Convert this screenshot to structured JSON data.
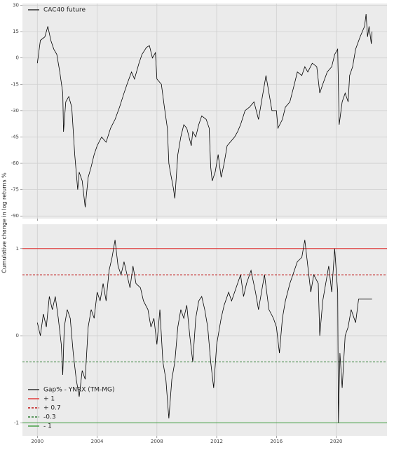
{
  "figure": {
    "ylabel": "Cumulative change in log returns %"
  },
  "chart_data": [
    {
      "type": "line",
      "legend": "upper left",
      "grid": true,
      "background": "#ebebeb",
      "xlim": [
        1999,
        2023.4
      ],
      "xticks": [
        2000,
        2004,
        2008,
        2012,
        2016,
        2020
      ],
      "ylim": [
        -91.5,
        31
      ],
      "yticks": [
        30,
        15,
        0,
        -15,
        -30,
        -45,
        -60,
        -75,
        -90
      ],
      "x": [
        2000.0,
        2000.2,
        2000.5,
        2000.7,
        2000.9,
        2001.1,
        2001.3,
        2001.5,
        2001.7,
        2001.75,
        2001.9,
        2002.1,
        2002.3,
        2002.5,
        2002.7,
        2002.8,
        2003.0,
        2003.2,
        2003.4,
        2003.6,
        2003.8,
        2004.0,
        2004.3,
        2004.6,
        2004.9,
        2005.2,
        2005.5,
        2005.8,
        2006.0,
        2006.3,
        2006.5,
        2006.8,
        2007.0,
        2007.3,
        2007.5,
        2007.7,
        2007.9,
        2008.0,
        2008.3,
        2008.5,
        2008.7,
        2008.8,
        2008.9,
        2009.1,
        2009.2,
        2009.4,
        2009.6,
        2009.8,
        2010.0,
        2010.3,
        2010.4,
        2010.6,
        2010.8,
        2011.0,
        2011.3,
        2011.5,
        2011.6,
        2011.7,
        2011.9,
        2012.1,
        2012.3,
        2012.5,
        2012.7,
        2012.9,
        2013.2,
        2013.4,
        2013.6,
        2013.9,
        2014.2,
        2014.5,
        2014.8,
        2015.0,
        2015.3,
        2015.5,
        2015.7,
        2016.0,
        2016.1,
        2016.4,
        2016.6,
        2016.9,
        2017.2,
        2017.4,
        2017.7,
        2017.9,
        2018.1,
        2018.4,
        2018.7,
        2018.9,
        2019.1,
        2019.4,
        2019.7,
        2019.9,
        2020.1,
        2020.2,
        2020.4,
        2020.6,
        2020.8,
        2020.9,
        2021.1,
        2021.3,
        2021.6,
        2021.9,
        2022.0,
        2022.1,
        2022.2,
        2022.35,
        2022.4
      ],
      "series": [
        {
          "name": "CAC40 future",
          "color": "#000000",
          "values": [
            -3,
            10,
            12,
            18,
            10,
            5,
            2,
            -8,
            -20,
            -42,
            -25,
            -22,
            -28,
            -55,
            -75,
            -65,
            -70,
            -85,
            -68,
            -62,
            -55,
            -50,
            -45,
            -48,
            -40,
            -35,
            -28,
            -20,
            -15,
            -8,
            -12,
            -3,
            2,
            6,
            7,
            0,
            3,
            -12,
            -15,
            -28,
            -40,
            -60,
            -65,
            -74,
            -80,
            -55,
            -45,
            -38,
            -40,
            -50,
            -42,
            -45,
            -38,
            -33,
            -35,
            -40,
            -62,
            -70,
            -65,
            -55,
            -68,
            -60,
            -50,
            -48,
            -45,
            -42,
            -38,
            -30,
            -28,
            -25,
            -35,
            -25,
            -10,
            -20,
            -30,
            -30,
            -40,
            -35,
            -28,
            -25,
            -15,
            -8,
            -10,
            -5,
            -8,
            -3,
            -5,
            -20,
            -15,
            -8,
            -5,
            2,
            5,
            -38,
            -25,
            -20,
            -25,
            -10,
            -5,
            5,
            12,
            18,
            25,
            12,
            18,
            8,
            15
          ]
        }
      ]
    },
    {
      "type": "line",
      "legend": "lower left",
      "grid": true,
      "background": "#ebebeb",
      "xlim": [
        1999,
        2023.4
      ],
      "xticks": [
        2000,
        2004,
        2008,
        2012,
        2016,
        2020
      ],
      "ylim": [
        -1.15,
        1.28
      ],
      "yticks": [
        1,
        0,
        -1
      ],
      "x": [
        2000.0,
        2000.2,
        2000.4,
        2000.6,
        2000.8,
        2001.0,
        2001.2,
        2001.4,
        2001.6,
        2001.7,
        2001.8,
        2002.0,
        2002.2,
        2002.4,
        2002.6,
        2002.8,
        2003.0,
        2003.2,
        2003.4,
        2003.6,
        2003.8,
        2004.0,
        2004.2,
        2004.4,
        2004.6,
        2004.8,
        2005.0,
        2005.2,
        2005.4,
        2005.6,
        2005.8,
        2006.0,
        2006.2,
        2006.4,
        2006.6,
        2006.9,
        2007.1,
        2007.4,
        2007.6,
        2007.8,
        2008.0,
        2008.2,
        2008.4,
        2008.6,
        2008.8,
        2009.0,
        2009.2,
        2009.4,
        2009.6,
        2009.8,
        2010.0,
        2010.2,
        2010.4,
        2010.6,
        2010.8,
        2011.0,
        2011.2,
        2011.4,
        2011.6,
        2011.8,
        2012.0,
        2012.3,
        2012.5,
        2012.8,
        2013.0,
        2013.3,
        2013.6,
        2013.8,
        2014.0,
        2014.3,
        2014.6,
        2014.8,
        2015.0,
        2015.2,
        2015.5,
        2015.8,
        2016.0,
        2016.2,
        2016.4,
        2016.6,
        2016.9,
        2017.1,
        2017.4,
        2017.7,
        2017.9,
        2018.1,
        2018.3,
        2018.5,
        2018.8,
        2018.9,
        2019.1,
        2019.3,
        2019.5,
        2019.7,
        2019.9,
        2020.1,
        2020.15,
        2020.25,
        2020.4,
        2020.6,
        2020.8,
        2021.0,
        2021.3,
        2021.5,
        2022.4
      ],
      "series": [
        {
          "name": "Gap% - YNRX (TM-MG)",
          "color": "#000000",
          "values": [
            0.15,
            0.0,
            0.25,
            0.1,
            0.45,
            0.3,
            0.45,
            0.2,
            -0.1,
            -0.45,
            0.1,
            0.3,
            0.2,
            -0.2,
            -0.5,
            -0.7,
            -0.4,
            -0.5,
            0.1,
            0.3,
            0.2,
            0.5,
            0.4,
            0.6,
            0.4,
            0.75,
            0.9,
            1.1,
            0.8,
            0.7,
            0.85,
            0.7,
            0.55,
            0.8,
            0.6,
            0.55,
            0.4,
            0.3,
            0.1,
            0.2,
            -0.1,
            0.3,
            -0.3,
            -0.5,
            -0.95,
            -0.5,
            -0.3,
            0.1,
            0.3,
            0.2,
            0.35,
            0.0,
            -0.3,
            0.2,
            0.4,
            0.45,
            0.3,
            0.1,
            -0.3,
            -0.6,
            -0.1,
            0.2,
            0.35,
            0.5,
            0.4,
            0.55,
            0.7,
            0.45,
            0.6,
            0.75,
            0.5,
            0.3,
            0.5,
            0.7,
            0.3,
            0.2,
            0.1,
            -0.2,
            0.2,
            0.4,
            0.6,
            0.7,
            0.85,
            0.9,
            1.1,
            0.8,
            0.5,
            0.7,
            0.6,
            0.0,
            0.4,
            0.6,
            0.8,
            0.5,
            1.0,
            0.5,
            -1.0,
            -0.2,
            -0.6,
            0.0,
            0.1,
            0.3,
            0.15,
            0.42,
            0.42
          ]
        }
      ],
      "reference_lines": [
        {
          "name": "+ 1",
          "value": 1,
          "color": "#e03030",
          "style": "solid"
        },
        {
          "name": "+ 0.7",
          "value": 0.7,
          "color": "#c01010",
          "style": "dashed"
        },
        {
          "name": "-0.3",
          "value": -0.3,
          "color": "#2e7d32",
          "style": "dashed"
        },
        {
          "name": "- 1",
          "value": -1,
          "color": "#3a9a3a",
          "style": "solid"
        }
      ]
    }
  ]
}
